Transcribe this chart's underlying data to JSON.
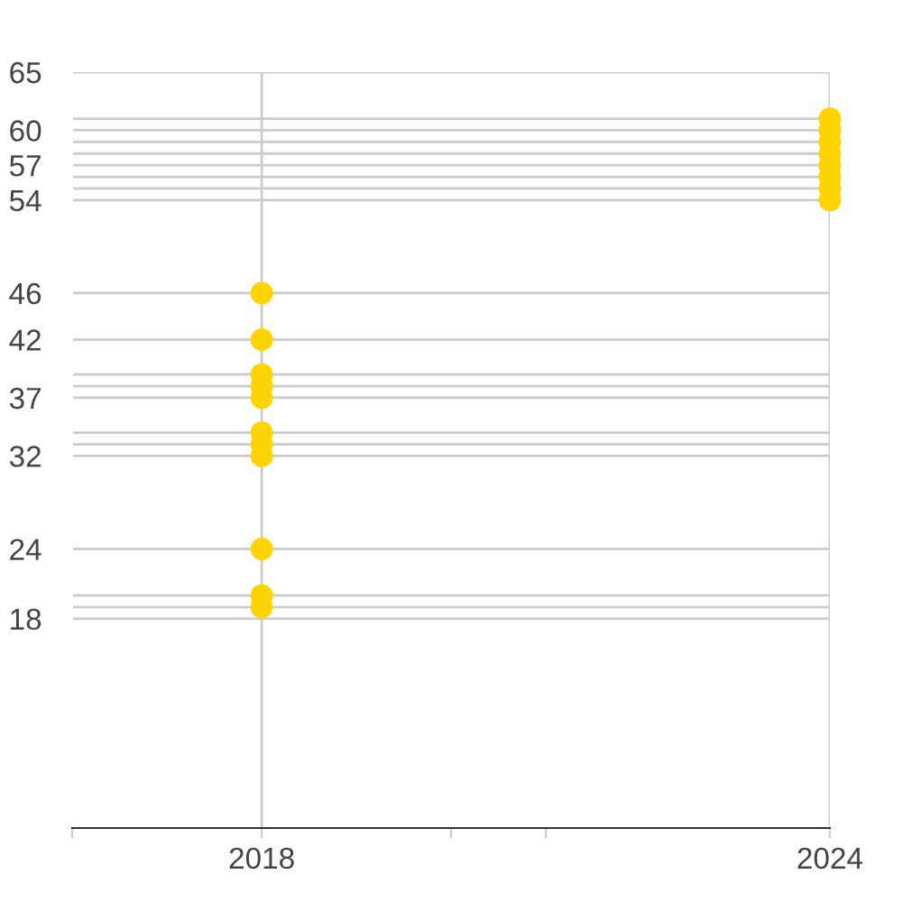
{
  "chart_data": {
    "type": "scatter",
    "x": [
      "2018",
      "2018",
      "2018",
      "2018",
      "2018",
      "2018",
      "2018",
      "2018",
      "2018",
      "2018",
      "2018",
      "2024",
      "2024",
      "2024",
      "2024",
      "2024",
      "2024",
      "2024",
      "2024"
    ],
    "series": [
      {
        "color": "#ffd400",
        "values": [
          46,
          42,
          39,
          38,
          37,
          34,
          33,
          32,
          24,
          20,
          19,
          61,
          60,
          59,
          58,
          57,
          56,
          55,
          54
        ]
      }
    ],
    "marker": "circle",
    "xlim": [
      "2016",
      "2024"
    ],
    "xticks": [
      {
        "value": "2016",
        "label": null
      },
      "2018",
      {
        "value": "2020",
        "label": null
      },
      {
        "value": "2021",
        "label": null
      },
      "2024"
    ],
    "ylim": [
      0,
      65
    ],
    "yticks": [
      18,
      {
        "value": 19,
        "label": null
      },
      {
        "value": 20,
        "label": null
      },
      24,
      32,
      {
        "value": 33,
        "label": null
      },
      {
        "value": 34,
        "label": null
      },
      37,
      {
        "value": 38,
        "label": null
      },
      {
        "value": 39,
        "label": null
      },
      42,
      46,
      54,
      {
        "value": 55,
        "label": null
      },
      {
        "value": 56,
        "label": null
      },
      57,
      {
        "value": 58,
        "label": null
      },
      {
        "value": 59,
        "label": null
      },
      60,
      {
        "value": 61,
        "label": null
      },
      65
    ],
    "grid": true,
    "legend": false
  }
}
